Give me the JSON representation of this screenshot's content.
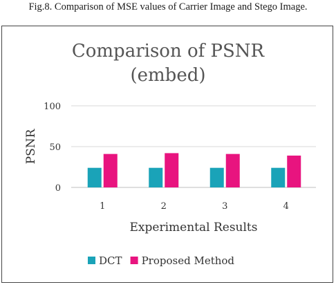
{
  "caption": "Fig.8. Comparison of MSE values of Carrier Image and Stego Image.",
  "chart_data": {
    "type": "bar",
    "title_lines": [
      "Comparison of PSNR",
      "(embed)"
    ],
    "xlabel": "Experimental Results",
    "ylabel": "PSNR",
    "categories": [
      "1",
      "2",
      "3",
      "4"
    ],
    "yticks": [
      "0",
      "50",
      "100"
    ],
    "ylim": [
      0,
      100
    ],
    "grid": true,
    "legend_position": "bottom",
    "series": [
      {
        "name": "DCT",
        "color": "#1aa3b8",
        "values": [
          24,
          24,
          24,
          24
        ]
      },
      {
        "name": "Proposed Method",
        "color": "#e8147f",
        "values": [
          41,
          42,
          41,
          39
        ]
      }
    ]
  }
}
